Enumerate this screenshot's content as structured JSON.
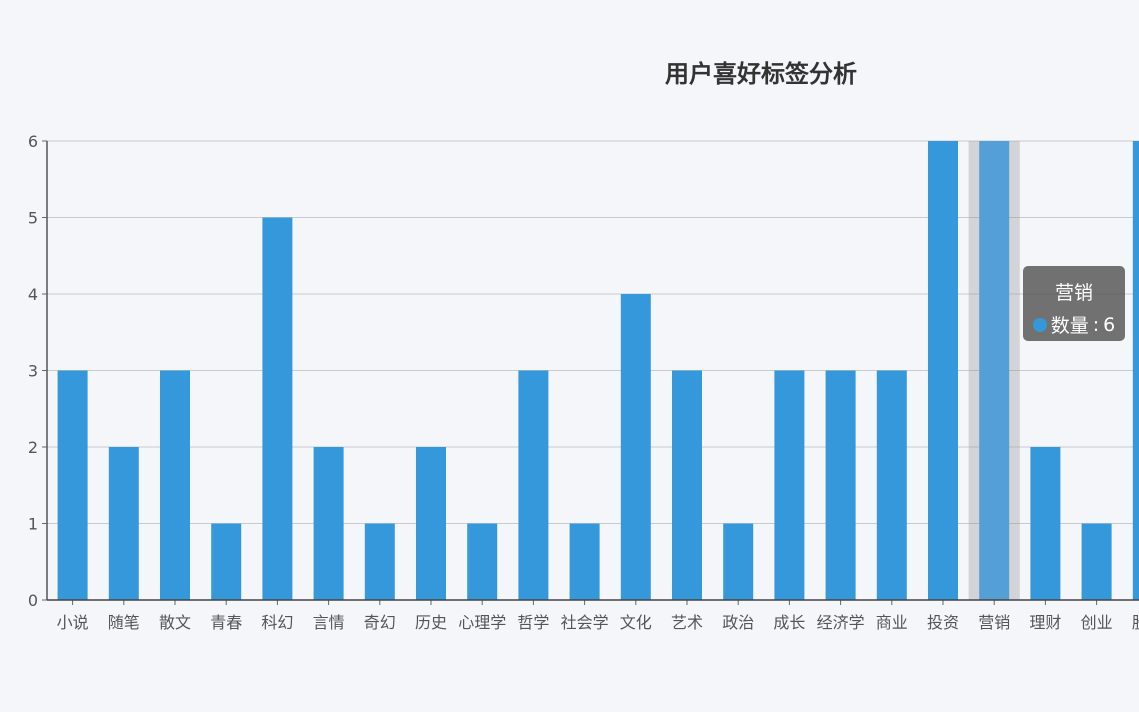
{
  "chart_data": {
    "type": "bar",
    "title": "用户喜好标签分析",
    "categories": [
      "小说",
      "随笔",
      "散文",
      "青春",
      "科幻",
      "言情",
      "奇幻",
      "历史",
      "心理学",
      "哲学",
      "社会学",
      "文化",
      "艺术",
      "政治",
      "成长",
      "经济学",
      "商业",
      "投资",
      "营销",
      "理财",
      "创业",
      "股票"
    ],
    "series": [
      {
        "name": "数量",
        "values": [
          3,
          2,
          3,
          1,
          5,
          2,
          1,
          2,
          1,
          3,
          1,
          4,
          3,
          1,
          3,
          3,
          3,
          6,
          6,
          2,
          1,
          6
        ]
      }
    ],
    "ylim": [
      0,
      6
    ],
    "yticks": [
      0,
      1,
      2,
      3,
      4,
      5,
      6
    ],
    "grid": true,
    "bar_color": "#3498db",
    "highlight_color": "#54a0d6",
    "highlighted_category": "营销",
    "tooltip": {
      "title": "营销",
      "series_label": "数量",
      "value": "6"
    }
  }
}
